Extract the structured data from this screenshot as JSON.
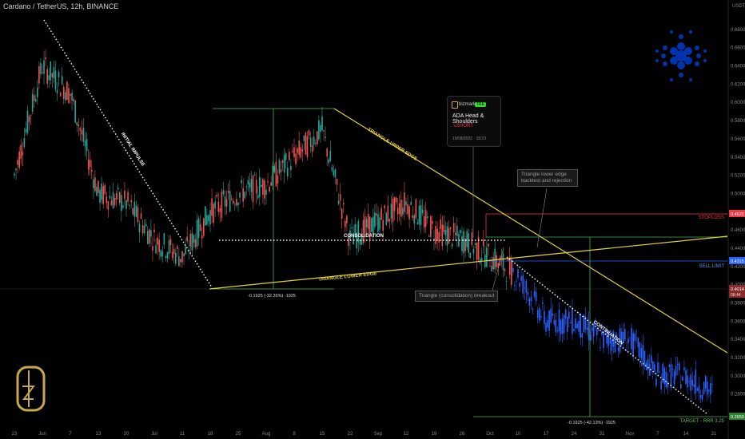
{
  "header": {
    "title": "Cardano / TetherUS, 12h, BINANCE"
  },
  "axis": {
    "currency": "USDT"
  },
  "popup": {
    "user": "bizmark",
    "badge": "TRE",
    "title": "ADA Head & Shoulders",
    "signal": "SHORT",
    "datetime": "19/09/2022 · 18:23"
  },
  "colors": {
    "up": "#26a69a",
    "down": "#ef5350",
    "bear": "#2962ff",
    "yellow": "#e6d23a",
    "green": "#4caf50",
    "red": "#f23645",
    "blue": "#2962ff",
    "logo": "#0033ad",
    "gold": "#c8a84b"
  },
  "chart_data": {
    "type": "candlestick",
    "ylim": [
      0.25,
      0.7
    ],
    "yticks": [
      0.68,
      0.66,
      0.64,
      0.62,
      0.6,
      0.58,
      0.56,
      0.54,
      0.52,
      0.5,
      0.48,
      0.46,
      0.44,
      0.42,
      0.4,
      0.38,
      0.36,
      0.34,
      0.32,
      0.3,
      0.28
    ],
    "ytick_labels": [
      "0.6800",
      "0.6600",
      "0.6400",
      "0.6200",
      "0.6000",
      "0.5800",
      "0.5600",
      "0.5400",
      "0.5200",
      "0.5000",
      "0.4800",
      "0.4600",
      "0.4400",
      "0.4200",
      "0.4000",
      "0.3800",
      "0.3600",
      "0.3400",
      "0.3200",
      "0.3000",
      "0.2800"
    ],
    "xticks": [
      "23",
      "Jun",
      "7",
      "13",
      "20",
      "Jul",
      "11",
      "18",
      "25",
      "Aug",
      "8",
      "15",
      "22",
      "Sep",
      "12",
      "19",
      "26",
      "Oct",
      "10",
      "17",
      "24",
      "31",
      "Nov",
      "7",
      "14",
      "21"
    ],
    "price_path": [
      {
        "t": "May 23",
        "close": 0.52
      },
      {
        "t": "Jun",
        "close": 0.64
      },
      {
        "t": "Jun 7",
        "close": 0.61
      },
      {
        "t": "Jun 13",
        "close": 0.5
      },
      {
        "t": "Jun 20",
        "close": 0.49
      },
      {
        "t": "Jul",
        "close": 0.45
      },
      {
        "t": "Jul 11",
        "close": 0.43
      },
      {
        "t": "Jul 18",
        "close": 0.48
      },
      {
        "t": "Jul 25",
        "close": 0.5
      },
      {
        "t": "Aug",
        "close": 0.51
      },
      {
        "t": "Aug 8",
        "close": 0.54
      },
      {
        "t": "Aug 15",
        "close": 0.57
      },
      {
        "t": "Aug 22",
        "close": 0.45
      },
      {
        "t": "Sep",
        "close": 0.47
      },
      {
        "t": "Sep 12",
        "close": 0.49
      },
      {
        "t": "Sep 19",
        "close": 0.46
      },
      {
        "t": "Sep 26",
        "close": 0.45
      },
      {
        "t": "Oct",
        "close": 0.43
      },
      {
        "t": "Oct 10",
        "close": 0.41
      },
      {
        "t": "Oct 17",
        "close": 0.36
      },
      {
        "t": "Oct 24",
        "close": 0.36
      },
      {
        "t": "Oct 31",
        "close": 0.34
      },
      {
        "t": "Nov",
        "close": 0.34
      },
      {
        "t": "Nov 7",
        "close": 0.3
      },
      {
        "t": "Nov 14",
        "close": 0.3
      },
      {
        "t": "Nov 21",
        "close": 0.28
      }
    ],
    "annotations": {
      "initial_impulse": "INITIAL IMPULSE",
      "triangle_upper": "TRIANGLE UPPER EDGE",
      "triangle_lower": "TRIANGLE LOWER EDGE",
      "consolidation": "CONSOLIDATION",
      "continuation": "CONTINUATION",
      "measure1": "-0.1925 (-32.36%) -1925",
      "measure2": "-0.1925 (-42.13%) -1925",
      "note_breakout": "Triangle (consolidation) breakout",
      "note_backtest": "Triangle lower edge backtest and rejection"
    },
    "levels": [
      {
        "name": "STOPLOSS",
        "value": 0.4625,
        "label": "0.4625"
      },
      {
        "name": "SELL LIMIT",
        "value": 0.4315,
        "label": "0.4315"
      },
      {
        "name": "TARGET - RRR 3.25",
        "value": 0.265,
        "label": "0.2650"
      }
    ],
    "current": {
      "value": 0.4014,
      "label": "0.4014",
      "sub": "08:44"
    }
  }
}
